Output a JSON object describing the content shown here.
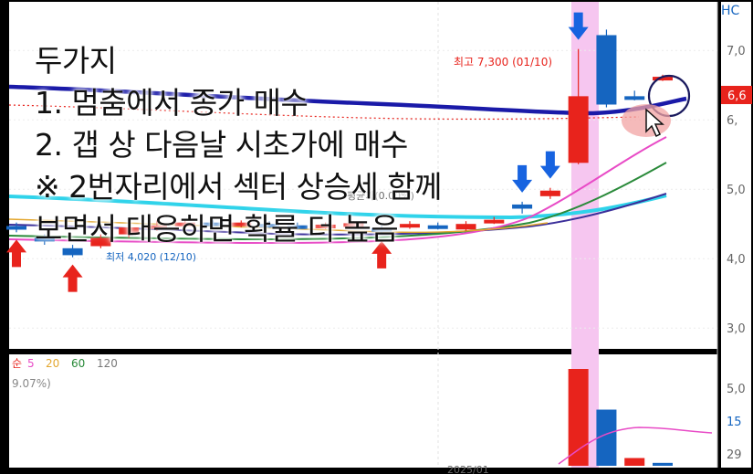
{
  "overlay_text": {
    "title": "두가지",
    "line1": "1. 멈춤에서 종가 매수",
    "line2": "2. 갭 상 다음날 시초가에 매수",
    "line3": "※ 2번자리에서 섹터 상승세 함께",
    "line4": "보면서 대응하면 확률 더 높음"
  },
  "labels": {
    "high_marker": "최고 7,300 (01/10)",
    "low_marker": "최저 4,020 (12/10)",
    "mid_label": "평균가(0.00%)",
    "corner_code": "HC",
    "volume_legend_prefix": "순",
    "volume_change": "9.07%)",
    "date_label": "2025/01"
  },
  "colors": {
    "background": "#ffffff",
    "up": "#e8231c",
    "down": "#1565c0",
    "highlight": "#f6c6f0",
    "ma_blue": "#1a1aa8",
    "ma_cyan": "#2fd3ea",
    "ma_magenta": "#e84bc6",
    "ma_green": "#2a8a3a",
    "ma_purple": "#3b2f9a",
    "signal_up": "#e8231c",
    "signal_down": "#1763e0",
    "price_tag": "#e8231c"
  },
  "chart_data": {
    "type": "candlestick",
    "y_ticks": [
      "7,0",
      "6,",
      "5,0",
      "4,0",
      "3,0"
    ],
    "y_tick_values": [
      7000,
      6000,
      5000,
      4000,
      3000
    ],
    "price_tag": "6,6",
    "price_tag_value": 6600,
    "ylim": [
      2700,
      7700
    ],
    "candles": [
      {
        "o": 4470,
        "c": 4430,
        "h": 4520,
        "l": 4380
      },
      {
        "o": 4300,
        "c": 4250,
        "h": 4350,
        "l": 4200
      },
      {
        "o": 4150,
        "c": 4050,
        "h": 4200,
        "l": 4020
      },
      {
        "o": 4180,
        "c": 4300,
        "h": 4350,
        "l": 4150
      },
      {
        "o": 4350,
        "c": 4450,
        "h": 4500,
        "l": 4300
      },
      {
        "o": 4450,
        "c": 4480,
        "h": 4550,
        "l": 4400
      },
      {
        "o": 4470,
        "c": 4520,
        "h": 4570,
        "l": 4420
      },
      {
        "o": 4520,
        "c": 4480,
        "h": 4560,
        "l": 4430
      },
      {
        "o": 4480,
        "c": 4520,
        "h": 4550,
        "l": 4450
      },
      {
        "o": 4500,
        "c": 4480,
        "h": 4540,
        "l": 4440
      },
      {
        "o": 4480,
        "c": 4470,
        "h": 4520,
        "l": 4420
      },
      {
        "o": 4460,
        "c": 4490,
        "h": 4520,
        "l": 4430
      },
      {
        "o": 4470,
        "c": 4510,
        "h": 4540,
        "l": 4440
      },
      {
        "o": 4440,
        "c": 4420,
        "h": 4480,
        "l": 4360
      },
      {
        "o": 4460,
        "c": 4500,
        "h": 4540,
        "l": 4430
      },
      {
        "o": 4480,
        "c": 4460,
        "h": 4520,
        "l": 4420
      },
      {
        "o": 4420,
        "c": 4500,
        "h": 4540,
        "l": 4400
      },
      {
        "o": 4520,
        "c": 4560,
        "h": 4600,
        "l": 4500
      },
      {
        "o": 4780,
        "c": 4720,
        "h": 4820,
        "l": 4650
      },
      {
        "o": 4900,
        "c": 4980,
        "h": 5020,
        "l": 4860
      },
      {
        "o": 5380,
        "c": 6340,
        "h": 7020,
        "l": 5360
      },
      {
        "o": 7220,
        "c": 6220,
        "h": 7300,
        "l": 6180
      },
      {
        "o": 6340,
        "c": 6330,
        "h": 6420,
        "l": 6280
      },
      {
        "o": 6600,
        "c": 6620,
        "h": 6650,
        "l": 6560
      }
    ],
    "signals": {
      "up_arrows": [
        0,
        2,
        13
      ],
      "down_arrows": [
        18,
        19,
        20
      ]
    },
    "ma_legend": [
      {
        "name": "5",
        "color": "#e84bc6"
      },
      {
        "name": "20",
        "color": "#e3a72f"
      },
      {
        "name": "60",
        "color": "#2a8a3a"
      },
      {
        "name": "120",
        "color": "#777777"
      }
    ],
    "volume": {
      "y_ticks": [
        "5,0",
        "15",
        "29"
      ],
      "values": [
        {
          "v": 0,
          "up": true
        },
        {
          "v": 0,
          "up": true
        },
        {
          "v": 0,
          "up": true
        },
        {
          "v": 0,
          "up": true
        },
        {
          "v": 0,
          "up": true
        },
        {
          "v": 0,
          "up": true
        },
        {
          "v": 0,
          "up": true
        },
        {
          "v": 0,
          "up": true
        },
        {
          "v": 0,
          "up": true
        },
        {
          "v": 0,
          "up": true
        },
        {
          "v": 0,
          "up": true
        },
        {
          "v": 0,
          "up": true
        },
        {
          "v": 0,
          "up": true
        },
        {
          "v": 0,
          "up": true
        },
        {
          "v": 0,
          "up": true
        },
        {
          "v": 0,
          "up": true
        },
        {
          "v": 0,
          "up": true
        },
        {
          "v": 0,
          "up": true
        },
        {
          "v": 0,
          "up": true
        },
        {
          "v": 0,
          "up": true
        },
        {
          "v": 100,
          "up": true
        },
        {
          "v": 58,
          "up": false
        },
        {
          "v": 8,
          "up": true
        },
        {
          "v": 3,
          "up": false
        }
      ]
    }
  }
}
